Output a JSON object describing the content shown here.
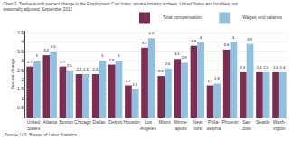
{
  "chart_data": {
    "type": "bar",
    "title": "Chart 2. Twelve-month percent change in the Employment Cost Index, private industry workers, United States and localities, not\nseasonally adjusted, September 2015",
    "ylabel": "Percent change",
    "annotations": [
      "Source: U.S. Bureau of Labor Statistics"
    ],
    "categories": [
      "United\nStates",
      "Atlanta",
      "Boston",
      "Chicago",
      "Dallas",
      "Detroit",
      "Houston",
      "Los\nAngeles",
      "Miami",
      "Minne-\napolis",
      "New\nYork",
      "Phila-\ndelphia",
      "Phoenix",
      "San\nJose",
      "Seattle",
      "Wash-\nington"
    ],
    "series": [
      {
        "name": "Total compensation",
        "color": "#7B2D52",
        "values": [
          2.7,
          3.3,
          2.7,
          2.3,
          2.3,
          2.8,
          1.7,
          3.7,
          2.2,
          3.1,
          3.8,
          1.7,
          3.6,
          2.4,
          2.4,
          2.4
        ]
      },
      {
        "name": "Wages and salaries",
        "color": "#92C0E0",
        "values": [
          3.0,
          3.5,
          2.5,
          2.3,
          3.0,
          3.0,
          1.5,
          4.2,
          2.6,
          2.9,
          4.0,
          1.8,
          4.0,
          3.9,
          2.4,
          2.4
        ]
      }
    ],
    "ylim": [
      0,
      4.6
    ],
    "yticks": [
      0.5,
      1,
      1.5,
      2,
      2.5,
      3,
      3.5,
      4,
      4.5
    ],
    "grid": true,
    "legend": "upper right",
    "data_labels": true
  }
}
